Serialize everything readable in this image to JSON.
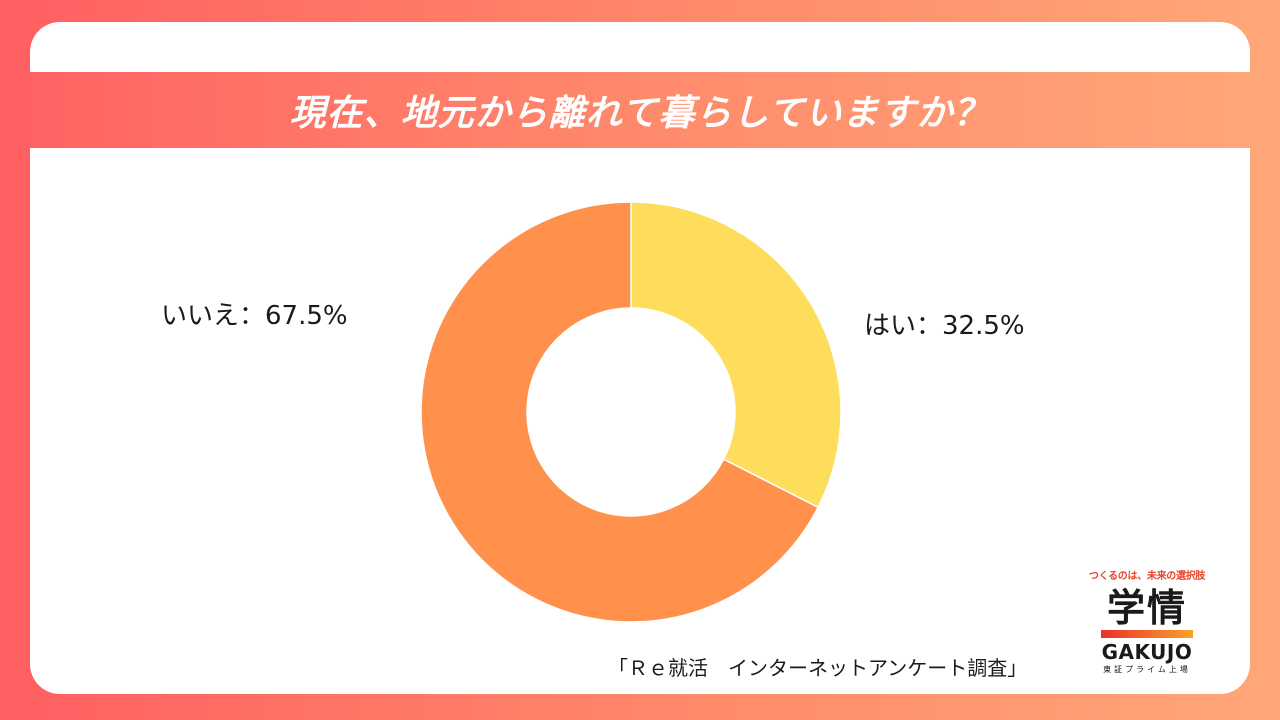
{
  "chart_data": {
    "type": "pie",
    "title": "現在、地元から離れて暮らしていますか？",
    "donut": true,
    "categories": [
      "はい",
      "いいえ"
    ],
    "values": [
      32.5,
      67.5
    ],
    "unit": "%",
    "labels": [
      "はい：32.5%",
      "いいえ：67.5%"
    ],
    "colors": [
      "#ffdd5c",
      "#ff914d"
    ],
    "legend": "none",
    "source": "「Ｒｅ就活　インターネットアンケート調査」"
  },
  "logo": {
    "tagline": "つくるのは、未来の選択肢",
    "mark": "学情",
    "name": "GAKUJO",
    "sub": "東証プライム上場"
  }
}
